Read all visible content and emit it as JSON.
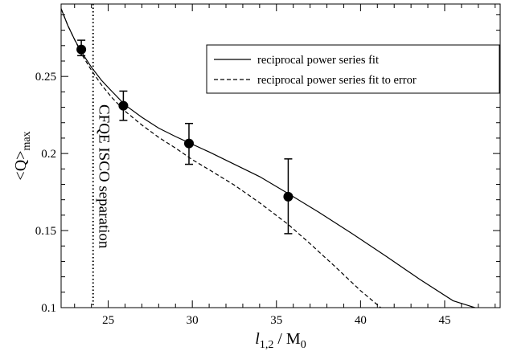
{
  "chart_data": {
    "type": "line",
    "title": "",
    "xlabel_italic": "l",
    "xlabel_sub": "1,2",
    "xlabel_rest": " / M",
    "xlabel_rest_sub": "0",
    "ylabel_main": "<Q>",
    "ylabel_sub": "max",
    "xlim": [
      22.2,
      48.3
    ],
    "ylim": [
      0.1,
      0.297
    ],
    "xticks": [
      25,
      30,
      35,
      40,
      45
    ],
    "yticks": [
      0.1,
      0.15,
      0.2,
      0.25
    ],
    "xtick_labels": [
      "25",
      "30",
      "35",
      "40",
      "45"
    ],
    "ytick_labels": [
      "0.1",
      "0.15",
      "0.2",
      "0.25"
    ],
    "grid": false,
    "legend_position": "top-right",
    "series": [
      {
        "name": "reciprocal power series fit",
        "style": "solid",
        "x": [
          22.2,
          22.6,
          23.0,
          23.4,
          24.0,
          24.6,
          25.2,
          26.0,
          27.0,
          28.0,
          29.0,
          29.8,
          31.0,
          32.5,
          34.0,
          35.7,
          37.5,
          39.5,
          41.5,
          43.5,
          45.5,
          46.8
        ],
        "y": [
          0.294,
          0.283,
          0.274,
          0.266,
          0.256,
          0.2475,
          0.2405,
          0.2315,
          0.2235,
          0.2165,
          0.211,
          0.207,
          0.201,
          0.193,
          0.185,
          0.174,
          0.162,
          0.148,
          0.1335,
          0.1185,
          0.1045,
          0.1
        ]
      },
      {
        "name": "reciprocal power series fit to error",
        "style": "dashed",
        "x": [
          22.2,
          22.6,
          23.0,
          23.5,
          24.0,
          24.6,
          25.2,
          26.0,
          27.0,
          28.0,
          29.0,
          30.0,
          31.0,
          32.5,
          34.0,
          35.7,
          37.0,
          38.5,
          40.0,
          41.2
        ],
        "y": [
          0.294,
          0.283,
          0.274,
          0.263,
          0.254,
          0.2445,
          0.2365,
          0.2275,
          0.2185,
          0.2105,
          0.2035,
          0.196,
          0.1895,
          0.1795,
          0.168,
          0.154,
          0.1415,
          0.1265,
          0.111,
          0.1
        ]
      }
    ],
    "points": {
      "x": [
        23.4,
        25.9,
        29.8,
        35.7
      ],
      "y": [
        0.2675,
        0.231,
        0.2065,
        0.172
      ],
      "err_low": [
        0.2635,
        0.2215,
        0.193,
        0.148
      ],
      "err_high": [
        0.2735,
        0.2405,
        0.2195,
        0.1965
      ]
    },
    "vertical_line": {
      "x": 24.1,
      "style": "dotted",
      "label": "CFQE ISCO separation"
    }
  }
}
